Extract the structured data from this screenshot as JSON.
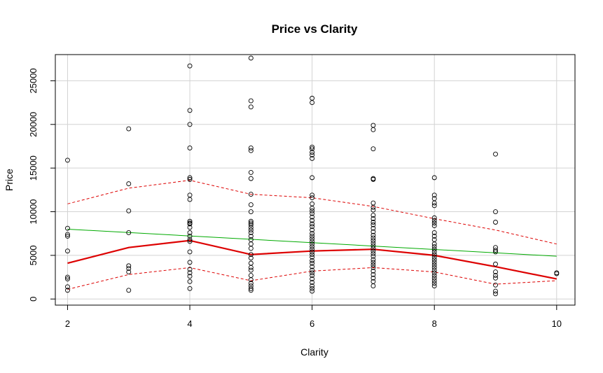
{
  "chart_data": {
    "type": "scatter",
    "title": "Price vs Clarity",
    "xlabel": "Clarity",
    "ylabel": "Price",
    "xlim": [
      1.8,
      10.3
    ],
    "ylim": [
      -700,
      28000
    ],
    "xticks": [
      2,
      4,
      6,
      8,
      10
    ],
    "yticks": [
      0,
      5000,
      10000,
      15000,
      20000,
      25000
    ],
    "grid": true,
    "colors": {
      "points": "#000000",
      "lowess": "#dd0000",
      "band": "#dd0000",
      "fit": "#00aa00",
      "grid": "#d3d3d3"
    },
    "points": [
      {
        "x": 2,
        "ys": [
          15900,
          8100,
          7400,
          7200,
          5500,
          2500,
          2300,
          1400,
          1000
        ]
      },
      {
        "x": 3,
        "ys": [
          19500,
          13200,
          10100,
          7600,
          3800,
          3500,
          3100,
          1000
        ]
      },
      {
        "x": 4,
        "ys": [
          26700,
          21600,
          20000,
          17300,
          13900,
          13700,
          11900,
          11400,
          8900,
          8700,
          8600,
          8200,
          7600,
          7200,
          6800,
          6600,
          5400,
          4200,
          3400,
          3000,
          2600,
          2000,
          1200
        ]
      },
      {
        "x": 5,
        "ys": [
          27600,
          22700,
          22000,
          17300,
          17000,
          14500,
          13800,
          12000,
          10800,
          10000,
          8900,
          8700,
          8500,
          8200,
          7900,
          7600,
          7200,
          6800,
          6300,
          5800,
          5100,
          4700,
          4100,
          3600,
          3300,
          2700,
          2200,
          1800,
          1500,
          1200,
          1000
        ]
      },
      {
        "x": 6,
        "ys": [
          23000,
          22500,
          17400,
          17200,
          16800,
          16500,
          16100,
          13900,
          11900,
          11600,
          10900,
          10400,
          10100,
          9800,
          9400,
          9000,
          8600,
          8300,
          7900,
          7500,
          7200,
          6900,
          6600,
          6300,
          6000,
          5700,
          5400,
          5100,
          4800,
          4400,
          4100,
          3700,
          3300,
          3000,
          2700,
          2300,
          1900,
          1500,
          1200,
          900
        ]
      },
      {
        "x": 7,
        "ys": [
          19900,
          19400,
          17200,
          13800,
          13700,
          11000,
          10500,
          10200,
          9600,
          9200,
          8800,
          8500,
          8100,
          7700,
          7300,
          7000,
          6700,
          6400,
          6100,
          5800,
          5500,
          5200,
          4900,
          4500,
          4200,
          3900,
          3600,
          3200,
          2800,
          2400,
          2000,
          1500
        ]
      },
      {
        "x": 8,
        "ys": [
          13900,
          11900,
          11500,
          11000,
          10700,
          9300,
          9000,
          8700,
          8400,
          7600,
          7200,
          6800,
          6300,
          6000,
          5700,
          5400,
          5100,
          4800,
          4500,
          4200,
          3900,
          3600,
          3300,
          3000,
          2700,
          2400,
          2100,
          1800,
          1500
        ]
      },
      {
        "x": 9,
        "ys": [
          16600,
          10000,
          8800,
          5900,
          5600,
          5400,
          4000,
          3100,
          2700,
          2400,
          1600,
          900,
          600
        ]
      },
      {
        "x": 10,
        "ys": [
          3000,
          2900
        ]
      }
    ],
    "lowess": {
      "x": [
        2,
        3,
        4,
        5,
        6,
        7,
        8,
        9,
        10
      ],
      "y": [
        4100,
        5900,
        6700,
        5100,
        5500,
        5700,
        5000,
        3700,
        2300
      ]
    },
    "lowess_upper": {
      "x": [
        2,
        3,
        4,
        5,
        6,
        7,
        8,
        9,
        10
      ],
      "y": [
        10900,
        12700,
        13600,
        12000,
        11600,
        10600,
        9200,
        7900,
        6300
      ]
    },
    "lowess_lower": {
      "x": [
        2,
        3,
        4,
        5,
        6,
        7,
        8,
        9,
        10
      ],
      "y": [
        1100,
        2800,
        3600,
        2100,
        3200,
        3600,
        3100,
        1700,
        2100
      ]
    },
    "linear_fit": {
      "x": [
        2,
        10
      ],
      "y": [
        8000,
        4900
      ]
    }
  }
}
